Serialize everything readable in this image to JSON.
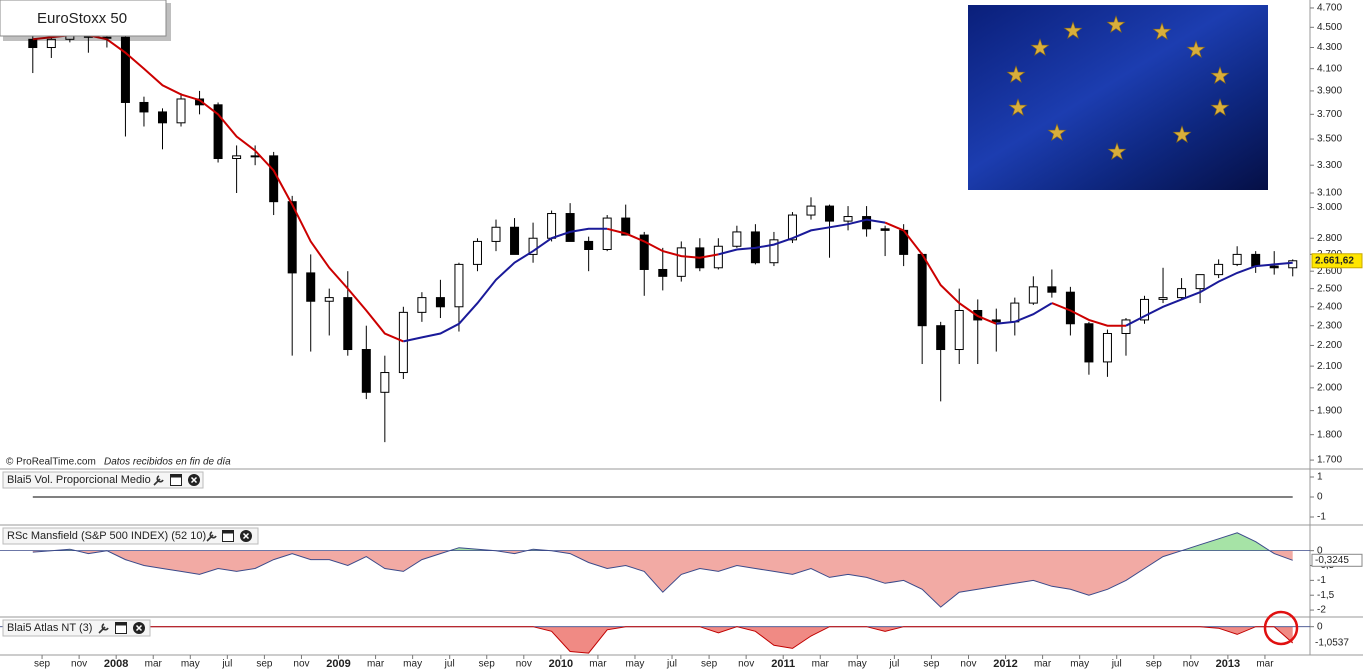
{
  "chart_data": [
    {
      "type": "candlestick",
      "title": "EuroStoxx 50",
      "credit": "© ProRealTime.com",
      "credit_note": "Datos recibidos en fin de día",
      "x": [
        "2007-08",
        "2007-09",
        "2007-10",
        "2007-11",
        "2007-12",
        "2008-01",
        "2008-02",
        "2008-03",
        "2008-04",
        "2008-05",
        "2008-06",
        "2008-07",
        "2008-08",
        "2008-09",
        "2008-10",
        "2008-11",
        "2008-12",
        "2009-01",
        "2009-02",
        "2009-03",
        "2009-04",
        "2009-05",
        "2009-06",
        "2009-07",
        "2009-08",
        "2009-09",
        "2009-10",
        "2009-11",
        "2009-12",
        "2010-01",
        "2010-02",
        "2010-03",
        "2010-04",
        "2010-05",
        "2010-06",
        "2010-07",
        "2010-08",
        "2010-09",
        "2010-10",
        "2010-11",
        "2010-12",
        "2011-01",
        "2011-02",
        "2011-03",
        "2011-04",
        "2011-05",
        "2011-06",
        "2011-07",
        "2011-08",
        "2011-09",
        "2011-10",
        "2011-11",
        "2011-12",
        "2012-01",
        "2012-02",
        "2012-03",
        "2012-04",
        "2012-05",
        "2012-06",
        "2012-07",
        "2012-08",
        "2012-09",
        "2012-10",
        "2012-11",
        "2012-12",
        "2013-01",
        "2013-02",
        "2013-03",
        "2013-04"
      ],
      "open": [
        4380,
        4300,
        4380,
        4490,
        4400,
        4400,
        3800,
        3720,
        3630,
        3830,
        3780,
        3350,
        3370,
        3370,
        3040,
        2590,
        2430,
        2450,
        2180,
        1980,
        2070,
        2370,
        2450,
        2400,
        2640,
        2780,
        2870,
        2700,
        2800,
        2960,
        2780,
        2730,
        2930,
        2820,
        2610,
        2570,
        2740,
        2620,
        2750,
        2840,
        2650,
        2790,
        2950,
        3010,
        2910,
        2940,
        2860,
        2850,
        2700,
        2300,
        2180,
        2380,
        2330,
        2320,
        2420,
        2510,
        2480,
        2310,
        2120,
        2260,
        2330,
        2440,
        2450,
        2500,
        2580,
        2640,
        2700,
        2630,
        2620
      ],
      "high": [
        4420,
        4400,
        4560,
        4500,
        4480,
        4420,
        3850,
        3750,
        3880,
        3900,
        3800,
        3450,
        3450,
        3400,
        3080,
        2700,
        2500,
        2600,
        2300,
        2150,
        2400,
        2480,
        2550,
        2650,
        2800,
        2920,
        2930,
        2900,
        2980,
        3030,
        2810,
        2950,
        3020,
        2840,
        2740,
        2780,
        2800,
        2800,
        2880,
        2890,
        2840,
        2970,
        3070,
        3020,
        3010,
        3010,
        2880,
        2890,
        2710,
        2320,
        2500,
        2440,
        2390,
        2450,
        2570,
        2610,
        2510,
        2320,
        2280,
        2340,
        2460,
        2620,
        2560,
        2580,
        2670,
        2750,
        2720,
        2720,
        2670
      ],
      "low": [
        4060,
        4200,
        4350,
        4250,
        4300,
        3520,
        3600,
        3420,
        3600,
        3700,
        3320,
        3100,
        3300,
        2950,
        2150,
        2170,
        2250,
        2150,
        1950,
        1770,
        2040,
        2320,
        2340,
        2270,
        2600,
        2720,
        2700,
        2650,
        2780,
        2780,
        2600,
        2720,
        2820,
        2460,
        2490,
        2540,
        2600,
        2610,
        2740,
        2640,
        2630,
        2770,
        2920,
        2680,
        2850,
        2810,
        2690,
        2630,
        2110,
        1940,
        2110,
        2110,
        2170,
        2250,
        2410,
        2450,
        2250,
        2060,
        2050,
        2150,
        2310,
        2420,
        2440,
        2420,
        2560,
        2630,
        2590,
        2580,
        2570
      ],
      "close": [
        4300,
        4380,
        4490,
        4400,
        4400,
        3800,
        3720,
        3630,
        3830,
        3780,
        3350,
        3370,
        3370,
        3040,
        2590,
        2430,
        2450,
        2180,
        1980,
        2070,
        2370,
        2450,
        2400,
        2640,
        2780,
        2870,
        2700,
        2800,
        2960,
        2780,
        2730,
        2930,
        2820,
        2610,
        2570,
        2740,
        2620,
        2750,
        2840,
        2650,
        2790,
        2950,
        3010,
        2910,
        2940,
        2860,
        2850,
        2700,
        2300,
        2180,
        2380,
        2330,
        2320,
        2420,
        2510,
        2480,
        2310,
        2120,
        2260,
        2330,
        2440,
        2450,
        2500,
        2580,
        2640,
        2700,
        2630,
        2620,
        2661.62
      ],
      "series": [
        {
          "color": "#cc0000",
          "values": [
            4380,
            4400,
            4420,
            4420,
            4380,
            4250,
            4100,
            3950,
            3870,
            3820,
            3700,
            3520,
            3410,
            3260,
            3020,
            2780,
            2620,
            2500,
            2380,
            2260,
            2220,
            null,
            null,
            null,
            null,
            null,
            null,
            null,
            null,
            null,
            null,
            2860,
            2830,
            2780,
            2720,
            2690,
            2680,
            2700,
            null,
            null,
            null,
            null,
            null,
            null,
            null,
            null,
            2900,
            2850,
            2700,
            2520,
            2420,
            2350,
            2310,
            null,
            null,
            2420,
            2380,
            2330,
            2300,
            2300,
            null,
            null,
            null,
            null,
            null,
            null,
            null,
            null,
            null
          ]
        },
        {
          "color": "#1a1a99",
          "values": [
            null,
            null,
            null,
            null,
            null,
            null,
            null,
            null,
            null,
            null,
            null,
            null,
            null,
            null,
            null,
            null,
            null,
            null,
            null,
            null,
            2220,
            2240,
            2260,
            2310,
            2420,
            2550,
            2650,
            2720,
            2800,
            2840,
            2860,
            2860,
            null,
            null,
            null,
            null,
            null,
            2700,
            2730,
            2740,
            2760,
            2800,
            2850,
            2870,
            2890,
            2920,
            2900,
            null,
            null,
            null,
            null,
            null,
            2310,
            2320,
            2360,
            2420,
            null,
            null,
            null,
            2300,
            2350,
            2400,
            2440,
            2480,
            2540,
            2590,
            2630,
            2640,
            2650
          ]
        }
      ],
      "log_scale": true,
      "ylim": [
        1670,
        4785
      ],
      "xlim": [
        "2007-07",
        "2013-05"
      ],
      "yticks": [
        {
          "value": 4700,
          "label": "4.700"
        },
        {
          "value": 4500,
          "label": "4.500"
        },
        {
          "value": 4300,
          "label": "4.300"
        },
        {
          "value": 4100,
          "label": "4.100"
        },
        {
          "value": 3900,
          "label": "3.900"
        },
        {
          "value": 3700,
          "label": "3.700"
        },
        {
          "value": 3500,
          "label": "3.500"
        },
        {
          "value": 3300,
          "label": "3.300"
        },
        {
          "value": 3100,
          "label": "3.100"
        },
        {
          "value": 3000,
          "label": "3.000"
        },
        {
          "value": 2800,
          "label": "2.800"
        },
        {
          "value": 2700,
          "label": "2.700"
        },
        {
          "value": 2600,
          "label": "2.600"
        },
        {
          "value": 2500,
          "label": "2.500"
        },
        {
          "value": 2400,
          "label": "2.400"
        },
        {
          "value": 2300,
          "label": "2.300"
        },
        {
          "value": 2200,
          "label": "2.200"
        },
        {
          "value": 2100,
          "label": "2.100"
        },
        {
          "value": 2000,
          "label": "2.000"
        },
        {
          "value": 1900,
          "label": "1.900"
        },
        {
          "value": 1800,
          "label": "1.800"
        },
        {
          "value": 1700,
          "label": "1.700"
        }
      ],
      "last_value": {
        "value": 2661.62,
        "label": "2.661,62"
      },
      "xticks": [
        {
          "value": "2007-09",
          "label": "sep"
        },
        {
          "value": "2007-11",
          "label": "nov"
        },
        {
          "value": "2008-01",
          "label": "2008"
        },
        {
          "value": "2008-03",
          "label": "mar"
        },
        {
          "value": "2008-05",
          "label": "may"
        },
        {
          "value": "2008-07",
          "label": "jul"
        },
        {
          "value": "2008-09",
          "label": "sep"
        },
        {
          "value": "2008-11",
          "label": "nov"
        },
        {
          "value": "2009-01",
          "label": "2009"
        },
        {
          "value": "2009-03",
          "label": "mar"
        },
        {
          "value": "2009-05",
          "label": "may"
        },
        {
          "value": "2009-07",
          "label": "jul"
        },
        {
          "value": "2009-09",
          "label": "sep"
        },
        {
          "value": "2009-11",
          "label": "nov"
        },
        {
          "value": "2010-01",
          "label": "2010"
        },
        {
          "value": "2010-03",
          "label": "mar"
        },
        {
          "value": "2010-05",
          "label": "may"
        },
        {
          "value": "2010-07",
          "label": "jul"
        },
        {
          "value": "2010-09",
          "label": "sep"
        },
        {
          "value": "2010-11",
          "label": "nov"
        },
        {
          "value": "2011-01",
          "label": "2011"
        },
        {
          "value": "2011-03",
          "label": "mar"
        },
        {
          "value": "2011-05",
          "label": "may"
        },
        {
          "value": "2011-07",
          "label": "jul"
        },
        {
          "value": "2011-09",
          "label": "sep"
        },
        {
          "value": "2011-11",
          "label": "nov"
        },
        {
          "value": "2012-01",
          "label": "2012"
        },
        {
          "value": "2012-03",
          "label": "mar"
        },
        {
          "value": "2012-05",
          "label": "may"
        },
        {
          "value": "2012-07",
          "label": "jul"
        },
        {
          "value": "2012-09",
          "label": "sep"
        },
        {
          "value": "2012-11",
          "label": "nov"
        },
        {
          "value": "2013-01",
          "label": "2013"
        },
        {
          "value": "2013-03",
          "label": "mar"
        }
      ]
    },
    {
      "type": "line",
      "title": "Blai5 Vol. Proporcional Medio",
      "color": "#000000",
      "values": [
        0,
        0,
        0,
        0,
        0,
        0,
        0,
        0,
        0,
        0,
        0,
        0,
        0,
        0,
        0,
        0,
        0,
        0,
        0,
        0,
        0,
        0,
        0,
        0,
        0,
        0,
        0,
        0,
        0,
        0,
        0,
        0,
        0,
        0,
        0,
        0,
        0,
        0,
        0,
        0,
        0,
        0,
        0,
        0,
        0,
        0,
        0,
        0,
        0,
        0,
        0,
        0,
        0,
        0,
        0,
        0,
        0,
        0,
        0,
        0,
        0,
        0,
        0,
        0,
        0,
        0,
        0,
        0,
        0
      ],
      "ylim": [
        -1.35,
        1.35
      ],
      "yticks": [
        1,
        0,
        -1
      ]
    },
    {
      "type": "area",
      "title": "RSc Mansfield (S&P 500 INDEX) (52 10)",
      "color_positive": "#a6e3a6",
      "color_negative": "#f2aaa4",
      "line_color": "#3b4a8a",
      "values": [
        -0.05,
        0,
        0.05,
        -0.1,
        0,
        -0.3,
        -0.5,
        -0.6,
        -0.7,
        -0.8,
        -0.6,
        -0.7,
        -0.6,
        -0.3,
        -0.1,
        -0.3,
        -0.3,
        -0.5,
        -0.2,
        -0.6,
        -0.7,
        -0.3,
        -0.1,
        0.1,
        0.05,
        0,
        -0.1,
        0.05,
        0,
        -0.1,
        -0.4,
        -0.6,
        -0.5,
        -0.7,
        -1.4,
        -0.8,
        -0.6,
        -0.7,
        -0.5,
        -0.6,
        -0.7,
        -0.8,
        -0.6,
        -0.9,
        -0.8,
        -0.9,
        -1.1,
        -1,
        -1.3,
        -1.9,
        -1.4,
        -1.3,
        -1.2,
        -1.1,
        -1,
        -1.2,
        -1.3,
        -1.5,
        -1.3,
        -1,
        -0.6,
        -0.2,
        0,
        0.2,
        0.4,
        0.6,
        0.3,
        -0.1,
        -0.3245
      ],
      "ylim": [
        -2.2,
        0.83
      ],
      "yticks": [
        0,
        {
          "value": -0.5,
          "label": "-0,5"
        },
        -1,
        {
          "value": -1.5,
          "label": "-1,5"
        },
        -2
      ],
      "last_value": {
        "value": -0.3245,
        "label": "-0,3245"
      }
    },
    {
      "type": "area",
      "title": "Blai5 Atlas NT (3)",
      "color_negative": "#f08a84",
      "line_color": "#c00000",
      "values": [
        0,
        0,
        0,
        0,
        0,
        0,
        0,
        0,
        0,
        0,
        0,
        0,
        0,
        0,
        0,
        0,
        0,
        0,
        0,
        0,
        0,
        0,
        0,
        0,
        0,
        0,
        0,
        0,
        -0.3,
        -1.6,
        -1.7,
        -0.2,
        0,
        0,
        0,
        0,
        0,
        -0.4,
        0,
        -0.3,
        -1.2,
        -1.4,
        -0.6,
        0,
        0,
        0,
        -0.3,
        0,
        0,
        0,
        0,
        0,
        0,
        0,
        0,
        0,
        0,
        0,
        0,
        0,
        0,
        0,
        0,
        0,
        -0.1,
        -0.5,
        0,
        0,
        -1.0537
      ],
      "ylim": [
        -1.76,
        0.56
      ],
      "yticks": [
        0
      ],
      "last_value": {
        "value": -1.0537,
        "label": "-1,0537"
      }
    }
  ]
}
